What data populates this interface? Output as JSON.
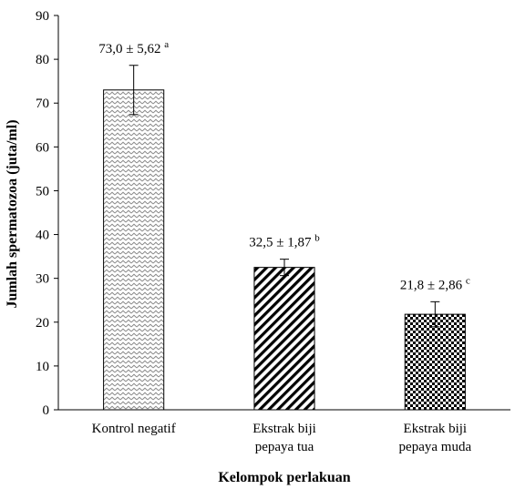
{
  "chart_data": {
    "type": "bar",
    "title": "",
    "xlabel": "Kelompok perlakuan",
    "ylabel": "Jumlah spermatozoa (juta/ml)",
    "ylim": [
      0,
      90
    ],
    "yticks": [
      "0",
      "10",
      "20",
      "30",
      "40",
      "50",
      "60",
      "70",
      "80",
      "90"
    ],
    "grid": false,
    "categories": [
      [
        "Kontrol negatif"
      ],
      [
        "Ekstrak biji",
        "pepaya tua"
      ],
      [
        "Ekstrak biji",
        "pepaya muda"
      ]
    ],
    "values": [
      73.0,
      32.5,
      21.8
    ],
    "errors": [
      5.62,
      1.87,
      2.86
    ],
    "labels": [
      "73,0 ± 5,62",
      "32,5 ± 1,87",
      "21,8 ± 2,86"
    ],
    "superscripts": [
      "a",
      "b",
      "c"
    ],
    "patterns": [
      "zigzag",
      "diagonal-stripes",
      "checkered"
    ]
  }
}
